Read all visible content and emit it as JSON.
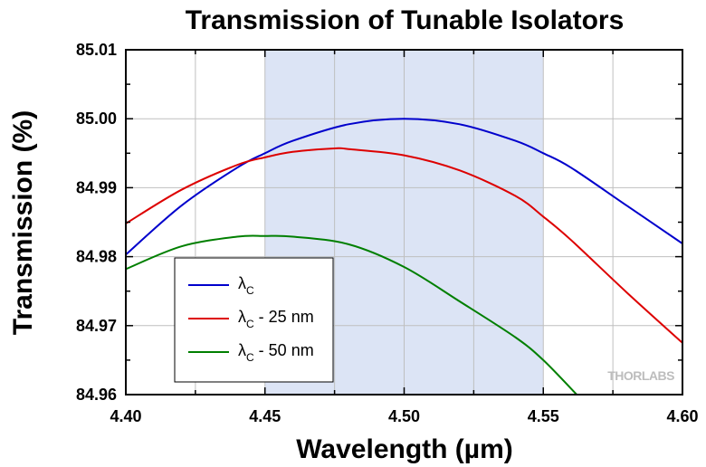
{
  "chart_data": {
    "type": "line",
    "title": "Transmission of Tunable Isolators",
    "xlabel": "Wavelength (µm)",
    "ylabel": "Transmission (%)",
    "xlim": [
      4.4,
      4.6
    ],
    "ylim": [
      84.96,
      85.01
    ],
    "x_ticks": [
      "4.40",
      "4.45",
      "4.50",
      "4.55",
      "4.60"
    ],
    "y_ticks": [
      "84.96",
      "84.97",
      "84.98",
      "84.99",
      "85.00",
      "85.01"
    ],
    "grid": true,
    "highlight_band": [
      4.45,
      4.55
    ],
    "legend_position": "lower-left",
    "series": [
      {
        "name": "λC",
        "color": "#0000cc",
        "x": [
          4.4,
          4.42,
          4.44,
          4.45,
          4.46,
          4.48,
          4.5,
          4.52,
          4.54,
          4.55,
          4.56,
          4.58,
          4.6
        ],
        "y": [
          84.9803,
          84.9874,
          84.9929,
          84.995,
          84.9968,
          84.9992,
          85.0,
          84.9992,
          84.9968,
          84.995,
          84.9929,
          84.9874,
          84.9819
        ]
      },
      {
        "name": "λC - 25 nm",
        "color": "#dd0000",
        "x": [
          4.4,
          4.42,
          4.44,
          4.45,
          4.46,
          4.475,
          4.48,
          4.5,
          4.52,
          4.54,
          4.55,
          4.56,
          4.58,
          4.6
        ],
        "y": [
          84.9848,
          84.9897,
          84.9933,
          84.9944,
          84.9952,
          84.9957,
          84.9956,
          84.9947,
          84.9925,
          84.9888,
          84.9858,
          84.9824,
          84.9748,
          84.9675
        ]
      },
      {
        "name": "λC - 50 nm",
        "color": "#007f00",
        "x": [
          4.4,
          4.42,
          4.44,
          4.45,
          4.46,
          4.48,
          4.5,
          4.52,
          4.54,
          4.55,
          4.562
        ],
        "y": [
          84.9782,
          84.9815,
          84.9829,
          84.983,
          84.9829,
          84.9818,
          84.9785,
          84.9735,
          84.9683,
          84.965,
          84.96
        ]
      }
    ]
  },
  "legend": {
    "entries": [
      {
        "symbol": "λ",
        "sub": "C",
        "suffix": ""
      },
      {
        "symbol": "λ",
        "sub": "C",
        "suffix": " - 25 nm"
      },
      {
        "symbol": "λ",
        "sub": "C",
        "suffix": " - 50 nm"
      }
    ]
  },
  "watermark": "THORLABS",
  "colors": {
    "band": "#dce4f5",
    "grid": "#bfbfbf",
    "frame": "#000000"
  }
}
